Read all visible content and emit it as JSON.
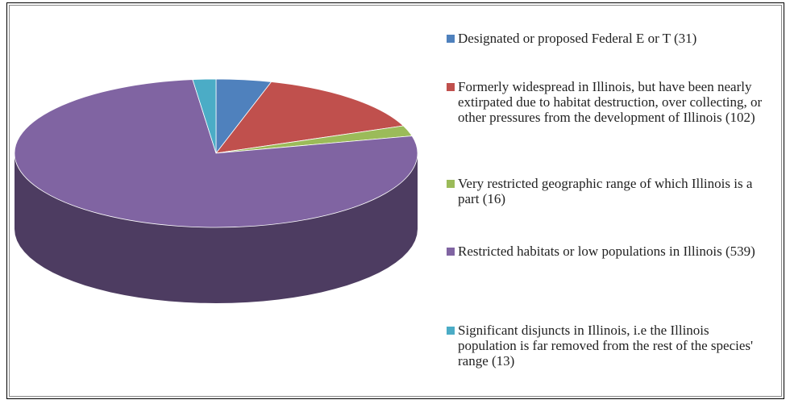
{
  "chart_data": {
    "type": "pie3d",
    "categories": [
      "Designated or proposed Federal E or T",
      "Formerly widespread in Illinois, but have been nearly extirpated due to habitat destruction, over collecting, or other pressures from the development of Illinois",
      "Very restricted geographic range of which Illinois is a part",
      "Restricted habitats or low populations in Illinois",
      "Significant disjuncts in Illinois, i.e the Illinois population is far removed from the rest of the species' range"
    ],
    "values": [
      31,
      102,
      16,
      539,
      13
    ],
    "value_labels": [
      "(31)",
      "(102)",
      "(16)",
      "(539)",
      "(13)"
    ],
    "colors": [
      "#4f81bd",
      "#c0504d",
      "#9bbb59",
      "#8064a2",
      "#4bacc6"
    ],
    "legend": "right"
  }
}
